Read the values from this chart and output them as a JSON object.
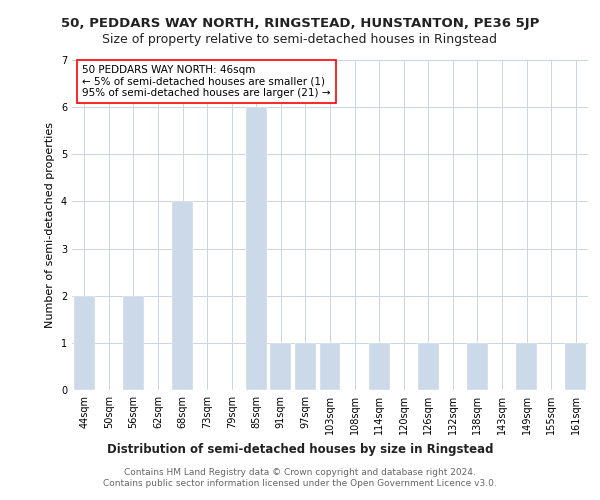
{
  "title": "50, PEDDARS WAY NORTH, RINGSTEAD, HUNSTANTON, PE36 5JP",
  "subtitle": "Size of property relative to semi-detached houses in Ringstead",
  "xlabel": "Distribution of semi-detached houses by size in Ringstead",
  "ylabel": "Number of semi-detached properties",
  "categories": [
    "44sqm",
    "50sqm",
    "56sqm",
    "62sqm",
    "68sqm",
    "73sqm",
    "79sqm",
    "85sqm",
    "91sqm",
    "97sqm",
    "103sqm",
    "108sqm",
    "114sqm",
    "120sqm",
    "126sqm",
    "132sqm",
    "138sqm",
    "143sqm",
    "149sqm",
    "155sqm",
    "161sqm"
  ],
  "values": [
    2,
    0,
    2,
    0,
    4,
    0,
    0,
    6,
    1,
    1,
    1,
    0,
    1,
    0,
    1,
    0,
    1,
    0,
    1,
    0,
    1
  ],
  "bar_color": "#ccd9e8",
  "ylim": [
    0,
    7
  ],
  "yticks": [
    0,
    1,
    2,
    3,
    4,
    5,
    6,
    7
  ],
  "annotation_text": "50 PEDDARS WAY NORTH: 46sqm\n← 5% of semi-detached houses are smaller (1)\n95% of semi-detached houses are larger (21) →",
  "footnote": "Contains HM Land Registry data © Crown copyright and database right 2024.\nContains public sector information licensed under the Open Government Licence v3.0.",
  "background_color": "#ffffff",
  "grid_color": "#c8d4e3",
  "title_fontsize": 9.5,
  "subtitle_fontsize": 9,
  "xlabel_fontsize": 8.5,
  "ylabel_fontsize": 8,
  "tick_fontsize": 7,
  "annotation_fontsize": 7.5,
  "footnote_fontsize": 6.5
}
